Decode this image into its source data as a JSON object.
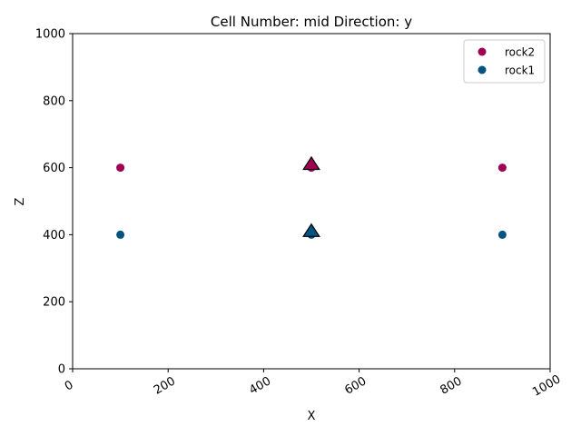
{
  "chart_data": {
    "type": "scatter",
    "title": "Cell Number: mid Direction: y",
    "xlabel": "X",
    "ylabel": "Z",
    "xlim": [
      0,
      1000
    ],
    "ylim": [
      0,
      1000
    ],
    "xticks": [
      0,
      200,
      400,
      600,
      800,
      1000
    ],
    "yticks": [
      0,
      200,
      400,
      600,
      800,
      1000
    ],
    "xtick_labels": [
      "0",
      "200",
      "400",
      "600",
      "800",
      "1000"
    ],
    "ytick_labels": [
      "0",
      "200",
      "400",
      "600",
      "800",
      "1000"
    ],
    "xtick_rotation": -30,
    "grid": false,
    "legend_position": "top-right",
    "series": [
      {
        "name": "rock2",
        "color": "#9f0052",
        "marker": "circle",
        "points": [
          {
            "x": 100,
            "y": 600
          },
          {
            "x": 500,
            "y": 600
          },
          {
            "x": 900,
            "y": 600
          }
        ]
      },
      {
        "name": "rock1",
        "color": "#015482",
        "marker": "circle",
        "points": [
          {
            "x": 100,
            "y": 400
          },
          {
            "x": 500,
            "y": 400
          },
          {
            "x": 900,
            "y": 400
          }
        ]
      }
    ],
    "orientations": [
      {
        "x": 500,
        "y": 610,
        "color": "#9f0052",
        "marker": "triangle-up"
      },
      {
        "x": 500,
        "y": 410,
        "color": "#015482",
        "marker": "triangle-up"
      }
    ]
  }
}
